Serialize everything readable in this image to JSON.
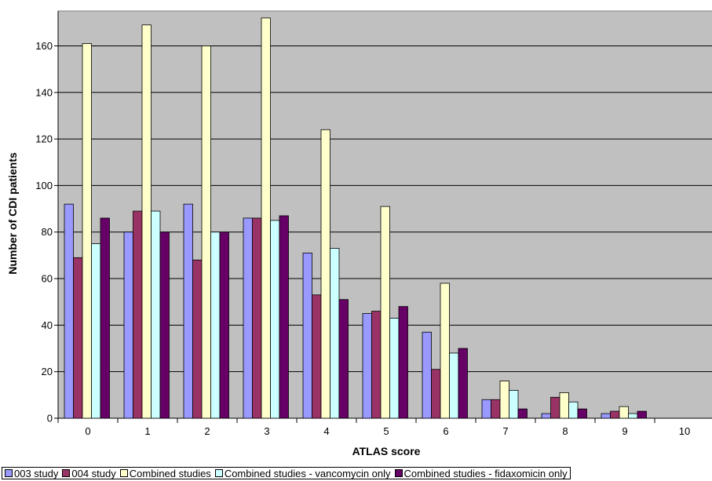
{
  "chart_data": {
    "type": "bar",
    "title": "",
    "xlabel": "ATLAS score",
    "ylabel": "Number of CDI patients",
    "categories": [
      "0",
      "1",
      "2",
      "3",
      "4",
      "5",
      "6",
      "7",
      "8",
      "9",
      "10"
    ],
    "ylim": [
      0,
      175
    ],
    "yticks": [
      0,
      20,
      40,
      60,
      80,
      100,
      120,
      140,
      160
    ],
    "grid": true,
    "legend_position": "bottom",
    "plot_background": "#c0c0c0",
    "series": [
      {
        "name": "003 study",
        "color": "#9999ff",
        "values": [
          92,
          80,
          92,
          86,
          71,
          45,
          37,
          8,
          2,
          2,
          0
        ]
      },
      {
        "name": "004 study",
        "color": "#993366",
        "values": [
          69,
          89,
          68,
          86,
          53,
          46,
          21,
          8,
          9,
          3,
          0
        ]
      },
      {
        "name": "Combined studies",
        "color": "#ffffcc",
        "values": [
          161,
          169,
          160,
          172,
          124,
          91,
          58,
          16,
          11,
          5,
          0
        ]
      },
      {
        "name": "Combined studies - vancomycin only",
        "color": "#ccffff",
        "values": [
          75,
          89,
          80,
          85,
          73,
          43,
          28,
          12,
          7,
          2,
          0
        ]
      },
      {
        "name": "Combined studies - fidaxomicin only",
        "color": "#660066",
        "values": [
          86,
          80,
          80,
          87,
          51,
          48,
          30,
          4,
          4,
          3,
          0
        ]
      }
    ]
  }
}
